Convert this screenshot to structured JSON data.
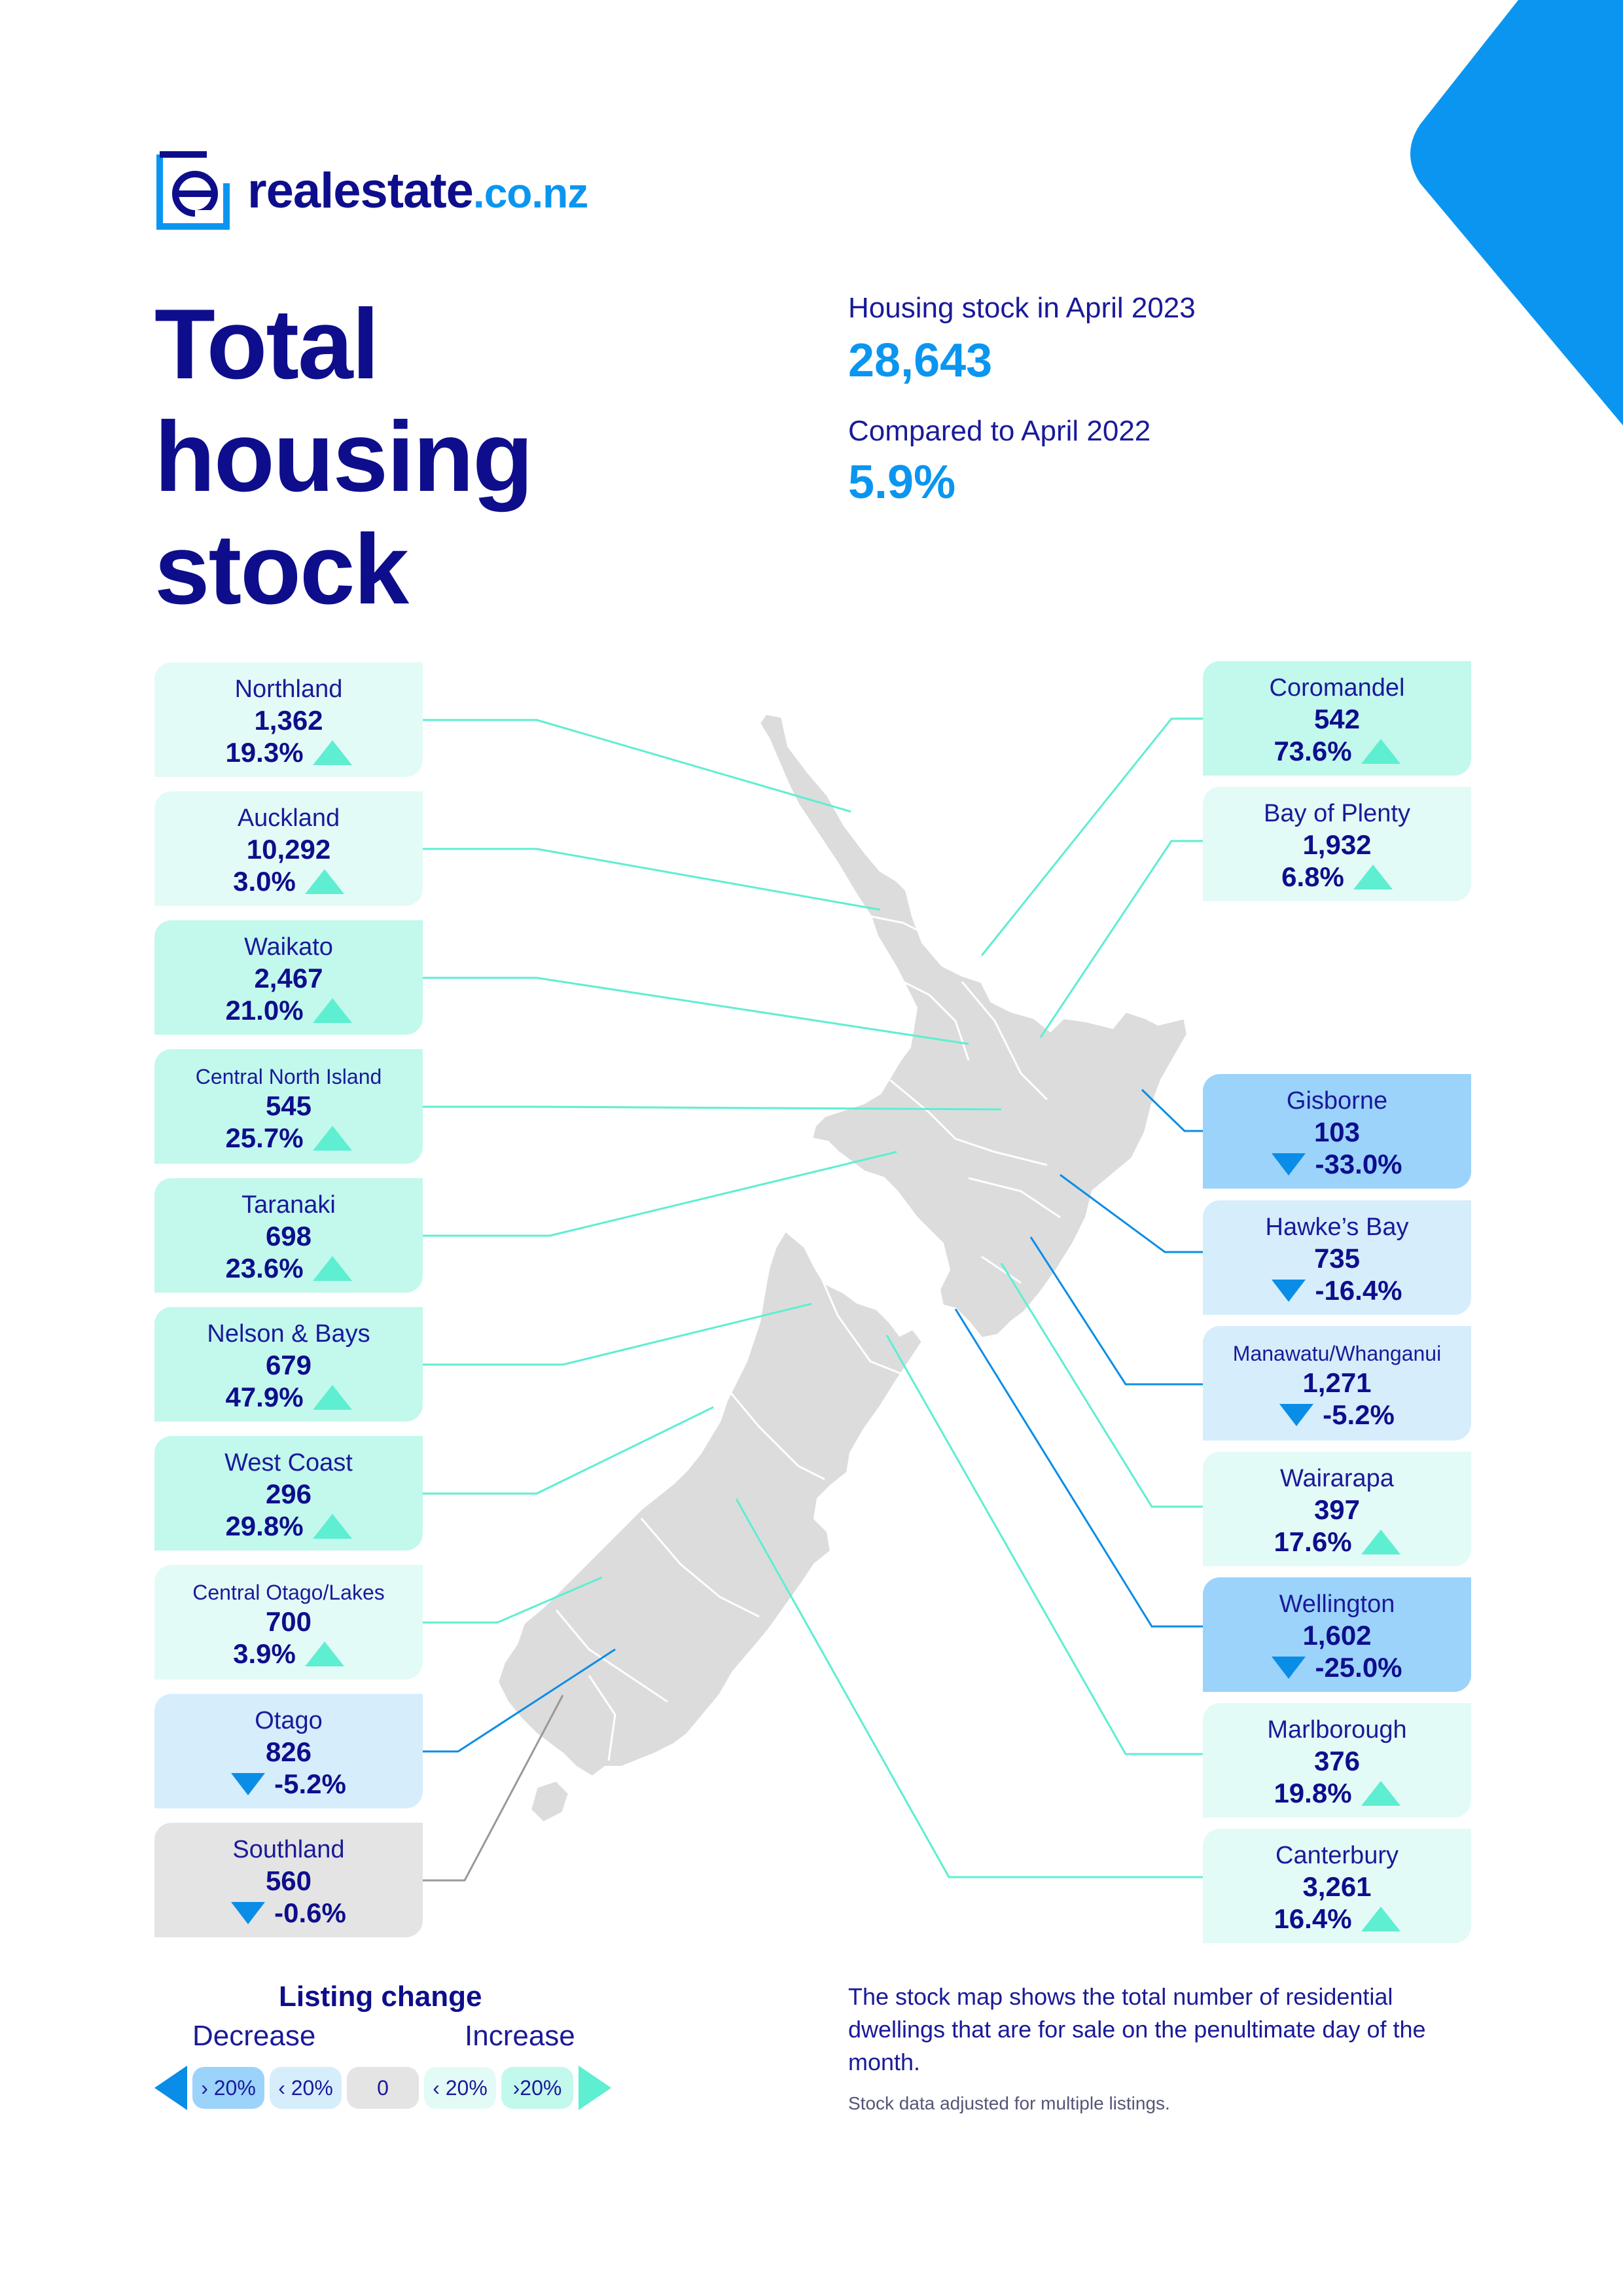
{
  "brand": {
    "name": "realestate",
    "tld": ".co.nz"
  },
  "title": {
    "line1": "Total",
    "line2": "housing",
    "line3": "stock"
  },
  "summary": {
    "stock_label": "Housing stock in April 2023",
    "stock_value": "28,643",
    "compare_label": "Compared to April 2022",
    "compare_value": "5.9%"
  },
  "colors": {
    "decrease_strong": "#9bd3fb",
    "decrease_mild": "#d6edfc",
    "neutral": "#e4e4e4",
    "increase_mild": "#e3fbf6",
    "increase_strong": "#c3f8ed",
    "line_increase": "#5eeed2",
    "line_decrease": "#0a8de6",
    "line_neutral": "#999999",
    "map_fill": "#dcdcdc"
  },
  "regions_left": [
    {
      "name": "Northland",
      "value": "1,362",
      "change": "19.3%",
      "direction": "up",
      "band": "increase_mild"
    },
    {
      "name": "Auckland",
      "value": "10,292",
      "change": "3.0%",
      "direction": "up",
      "band": "increase_mild"
    },
    {
      "name": "Waikato",
      "value": "2,467",
      "change": "21.0%",
      "direction": "up",
      "band": "increase_strong"
    },
    {
      "name": "Central North Island",
      "value": "545",
      "change": "25.7%",
      "direction": "up",
      "band": "increase_strong"
    },
    {
      "name": "Taranaki",
      "value": "698",
      "change": "23.6%",
      "direction": "up",
      "band": "increase_strong"
    },
    {
      "name": "Nelson & Bays",
      "value": "679",
      "change": "47.9%",
      "direction": "up",
      "band": "increase_strong"
    },
    {
      "name": "West Coast",
      "value": "296",
      "change": "29.8%",
      "direction": "up",
      "band": "increase_strong"
    },
    {
      "name": "Central Otago/Lakes",
      "value": "700",
      "change": "3.9%",
      "direction": "up",
      "band": "increase_mild"
    },
    {
      "name": "Otago",
      "value": "826",
      "change": "-5.2%",
      "direction": "down",
      "band": "decrease_mild"
    },
    {
      "name": "Southland",
      "value": "560",
      "change": "-0.6%",
      "direction": "down",
      "band": "neutral"
    }
  ],
  "regions_right": [
    {
      "name": "Coromandel",
      "value": "542",
      "change": "73.6%",
      "direction": "up",
      "band": "increase_strong"
    },
    {
      "name": "Bay of Plenty",
      "value": "1,932",
      "change": "6.8%",
      "direction": "up",
      "band": "increase_mild"
    },
    {
      "name": "Gisborne",
      "value": "103",
      "change": "-33.0%",
      "direction": "down",
      "band": "decrease_strong"
    },
    {
      "name": "Hawke’s Bay",
      "value": "735",
      "change": "-16.4%",
      "direction": "down",
      "band": "decrease_mild"
    },
    {
      "name": "Manawatu/Whanganui",
      "value": "1,271",
      "change": "-5.2%",
      "direction": "down",
      "band": "decrease_mild"
    },
    {
      "name": "Wairarapa",
      "value": "397",
      "change": "17.6%",
      "direction": "up",
      "band": "increase_mild"
    },
    {
      "name": "Wellington",
      "value": "1,602",
      "change": "-25.0%",
      "direction": "down",
      "band": "decrease_strong"
    },
    {
      "name": "Marlborough",
      "value": "376",
      "change": "19.8%",
      "direction": "up",
      "band": "increase_mild"
    },
    {
      "name": "Canterbury",
      "value": "3,261",
      "change": "16.4%",
      "direction": "up",
      "band": "increase_mild"
    }
  ],
  "legend": {
    "title": "Listing change",
    "decrease_label": "Decrease",
    "increase_label": "Increase",
    "chips": [
      "› 20%",
      "‹ 20%",
      "0",
      "‹ 20%",
      "›20%"
    ]
  },
  "note": "The stock map shows the total number of residential dwellings that are for sale on the penultimate day of the month.",
  "footnote": "Stock data adjusted for multiple listings."
}
